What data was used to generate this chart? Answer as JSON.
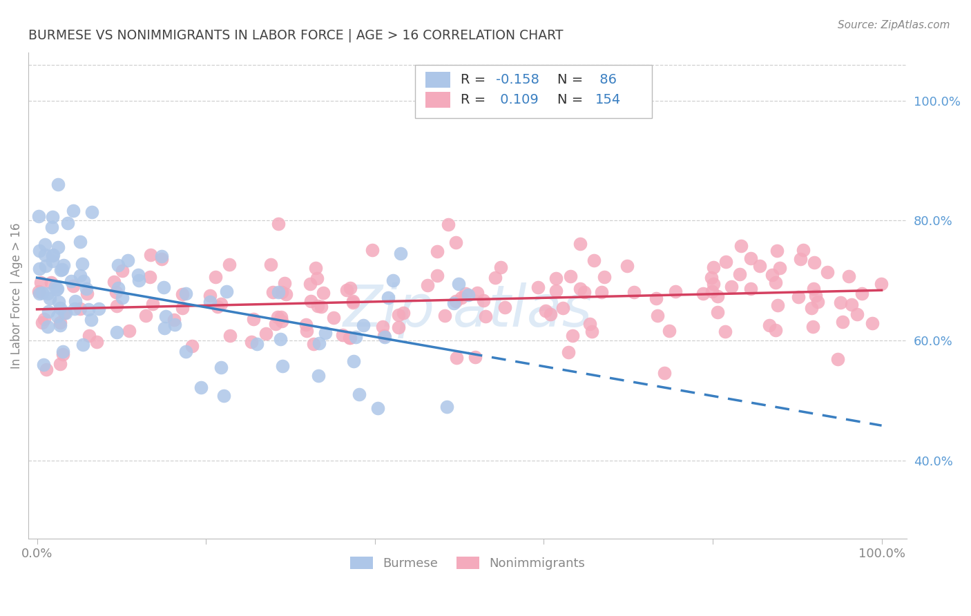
{
  "title": "BURMESE VS NONIMMIGRANTS IN LABOR FORCE | AGE > 16 CORRELATION CHART",
  "source": "Source: ZipAtlas.com",
  "ylabel": "In Labor Force | Age > 16",
  "blue_color": "#adc6e8",
  "pink_color": "#f4aabc",
  "blue_line_color": "#3a7fc1",
  "pink_line_color": "#d44060",
  "right_tick_color": "#5b9bd5",
  "grid_color": "#d0d0d0",
  "background_color": "#ffffff",
  "title_color": "#444444",
  "source_color": "#888888",
  "watermark_color": "#c8ddf0",
  "blue_R": -0.158,
  "blue_N": 86,
  "pink_R": 0.109,
  "pink_N": 154,
  "legend_text_color": "#333333",
  "legend_value_color": "#3a7fc1",
  "y_ticks_right": [
    1.0,
    0.8,
    0.6,
    0.4
  ],
  "y_tick_labels_right": [
    "100.0%",
    "80.0%",
    "60.0%",
    "40.0%"
  ],
  "ylim": [
    0.27,
    1.08
  ],
  "xlim": [
    -0.01,
    1.03
  ]
}
